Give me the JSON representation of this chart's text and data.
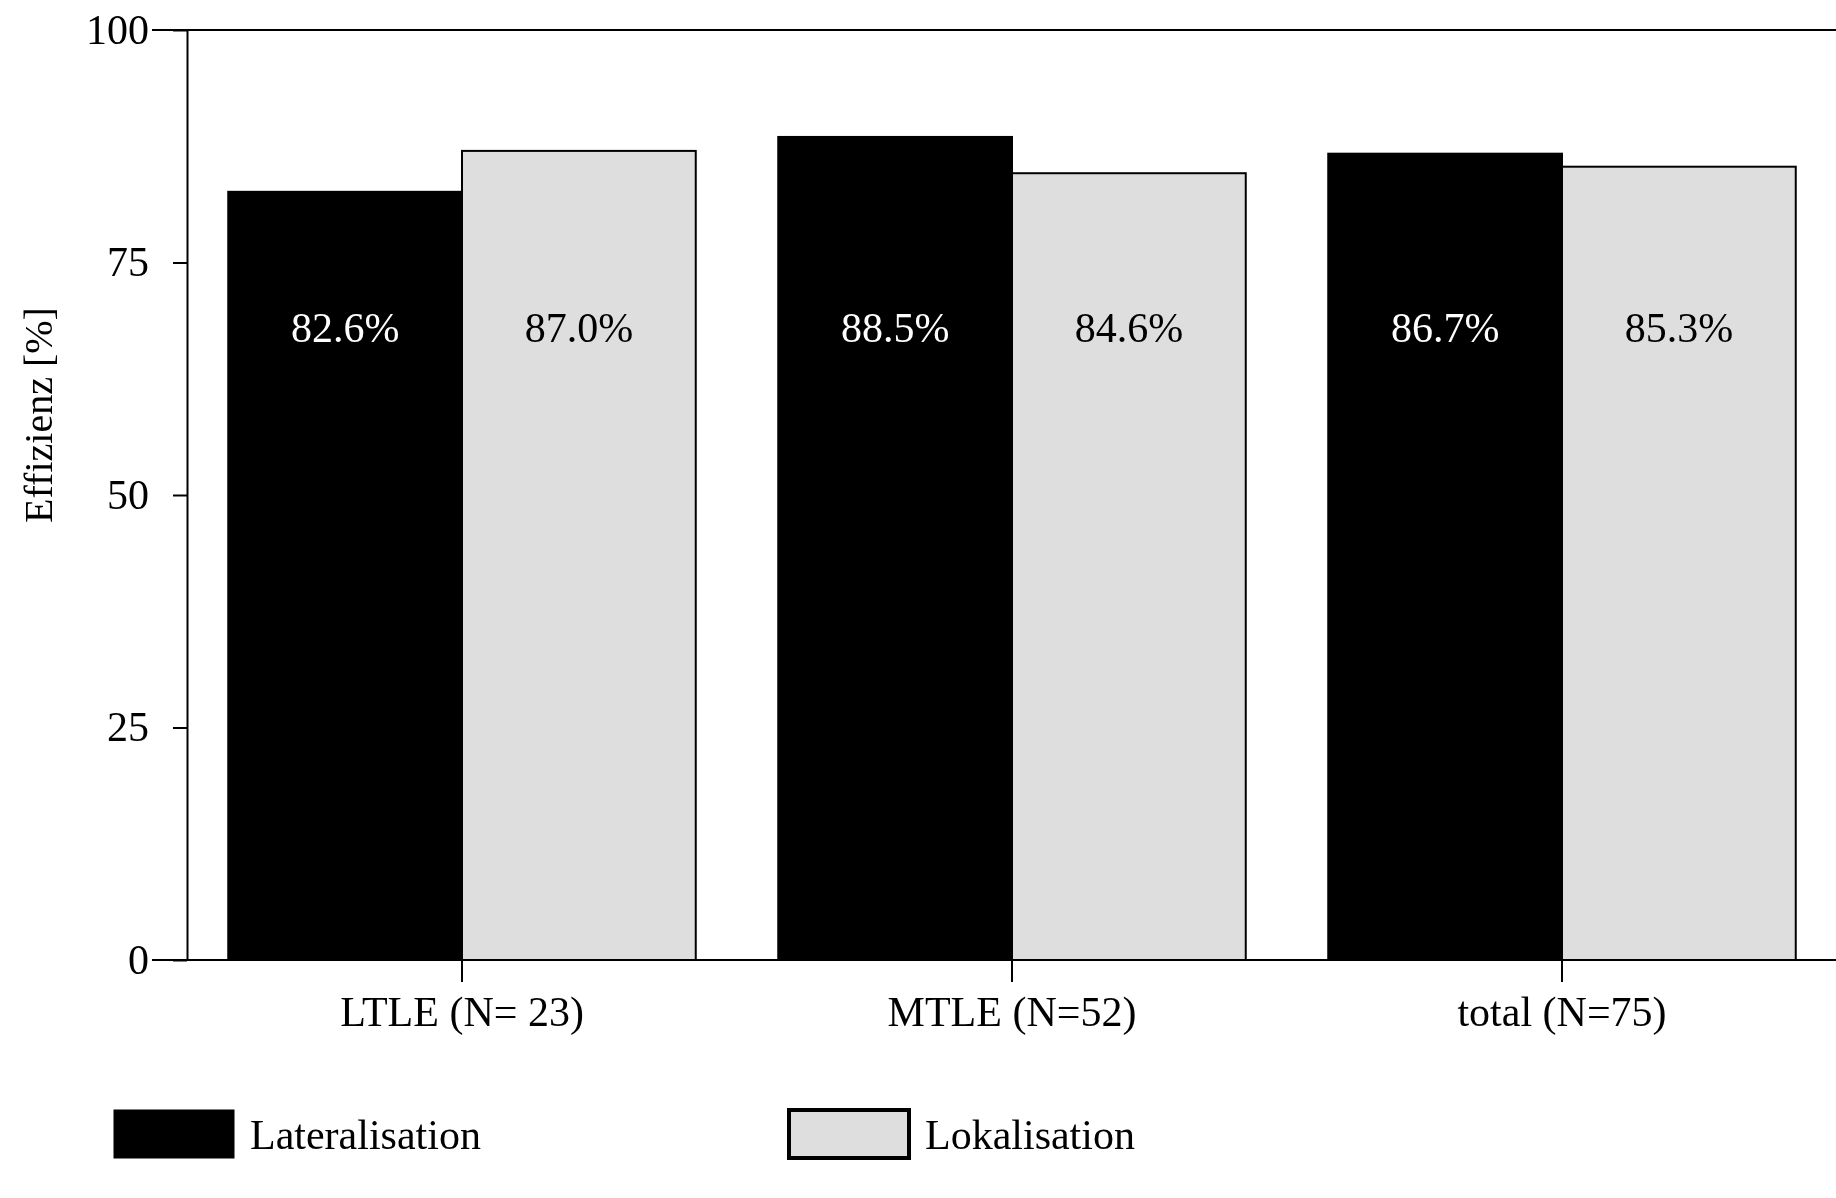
{
  "chart_data": {
    "type": "bar",
    "ylabel": "Effizienz [%]",
    "categories": [
      "LTLE (N= 23)",
      "MTLE (N=52)",
      "total (N=75)"
    ],
    "series": [
      {
        "name": "Lateralisation",
        "color": "#000000",
        "values": [
          82.6,
          88.5,
          86.7
        ],
        "value_labels": [
          "82.6%",
          "88.5%",
          "86.7%"
        ]
      },
      {
        "name": "Lokalisation",
        "color": "#dedede",
        "values": [
          87.0,
          84.6,
          85.3
        ],
        "value_labels": [
          "87.0%",
          "84.6%",
          "85.3%"
        ]
      }
    ],
    "ylim": [
      0,
      100
    ],
    "yticks": [
      0,
      25,
      50,
      75,
      100
    ],
    "grid": false,
    "legend": "bottom"
  }
}
